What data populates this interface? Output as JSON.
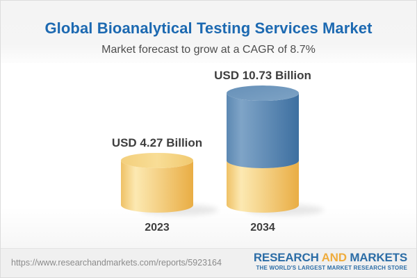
{
  "chart_data": {
    "type": "bar",
    "variant": "3d-cylinder, 2034 bar stacked: 2023 base in gold + growth in blue",
    "title": "Global Bioanalytical Testing Services Market",
    "subtitle": "Market forecast to grow at a CAGR of 8.7%",
    "categories": [
      "2023",
      "2034"
    ],
    "values": [
      4.27,
      10.73
    ],
    "value_labels": [
      "USD 4.27 Billion",
      "USD 10.73 Billion"
    ],
    "unit": "USD Billion",
    "cagr_pct": 8.7,
    "grid": false,
    "legend": "none",
    "colors": {
      "title_blue": "#1c69b1",
      "gold_edge": "#efc166",
      "gold_light": "#fce9b2",
      "gold_dark": "#e9ad44",
      "gold_top_left": "#f3cf7c",
      "gold_top": "#f8dd96",
      "gold_top_right": "#f1c96f",
      "blue_edge": "#5c88b2",
      "blue_light": "#7fa4c7",
      "blue_dark": "#3d6fa0",
      "blue_top_left": "#6690b8",
      "blue_top_right": "#7ea3c5"
    }
  },
  "footer": {
    "url": "https://www.researchandmarkets.com/reports/5923164",
    "logo": {
      "word1": "RESEARCH",
      "word2": "AND",
      "word3": "MARKETS",
      "tagline": "THE WORLD'S LARGEST MARKET RESEARCH STORE"
    }
  }
}
